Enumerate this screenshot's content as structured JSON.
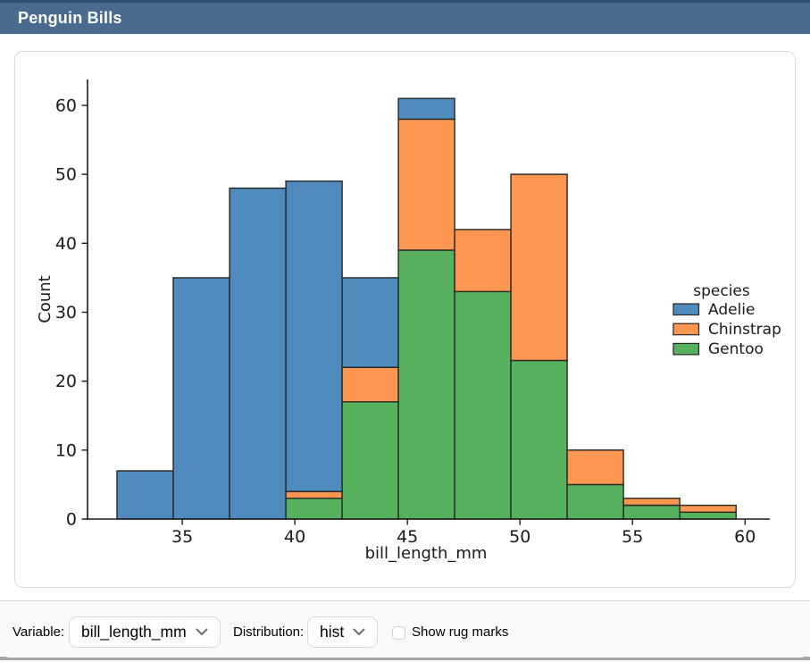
{
  "app": {
    "title": "Penguin Bills"
  },
  "colors": {
    "header_bg": "#4a6a90",
    "header_top_border": "#2e4c76",
    "card_border": "#d9d9d9",
    "footer_bg": "#fafafa",
    "axis": "#1a1a1a",
    "bar_edge": "#262626",
    "adelie": "#4f8bbd",
    "chinstrap": "#fc9650",
    "gentoo": "#57b05c"
  },
  "chart_data": {
    "type": "bar",
    "subtype": "stacked_histogram",
    "title": "",
    "xlabel": "bill_length_mm",
    "ylabel": "Count",
    "bin_edges": [
      32.1,
      34.6,
      37.1,
      39.6,
      42.1,
      44.6,
      47.1,
      49.6,
      52.1,
      54.6,
      57.1,
      59.6
    ],
    "series": [
      {
        "name": "Adelie",
        "color": "#4f8bbd",
        "values": [
          7,
          35,
          48,
          45,
          13,
          3,
          0,
          0,
          0,
          0,
          0
        ]
      },
      {
        "name": "Chinstrap",
        "color": "#fc9650",
        "values": [
          0,
          0,
          0,
          1,
          5,
          19,
          9,
          27,
          5,
          1,
          1
        ]
      },
      {
        "name": "Gentoo",
        "color": "#57b05c",
        "values": [
          0,
          0,
          0,
          3,
          17,
          39,
          33,
          23,
          5,
          2,
          1
        ]
      }
    ],
    "stack_bottom_to_top": [
      "Gentoo",
      "Chinstrap",
      "Adelie"
    ],
    "bin_totals": [
      7,
      35,
      48,
      49,
      35,
      61,
      42,
      50,
      10,
      3,
      2
    ],
    "xticks": [
      35,
      40,
      45,
      50,
      55,
      60
    ],
    "yticks": [
      0,
      10,
      20,
      30,
      40,
      50,
      60
    ],
    "xlim": [
      30.79,
      61.1
    ],
    "ylim": [
      0,
      63.75
    ],
    "grid": false,
    "legend": {
      "title": "species",
      "entries": [
        "Adelie",
        "Chinstrap",
        "Gentoo"
      ],
      "position": "center right"
    }
  },
  "footer": {
    "variable_label": "Variable:",
    "variable_value": "bill_length_mm",
    "distribution_label": "Distribution:",
    "distribution_value": "hist",
    "rug_checkbox_label": "Show rug marks",
    "rug_checked": false
  }
}
